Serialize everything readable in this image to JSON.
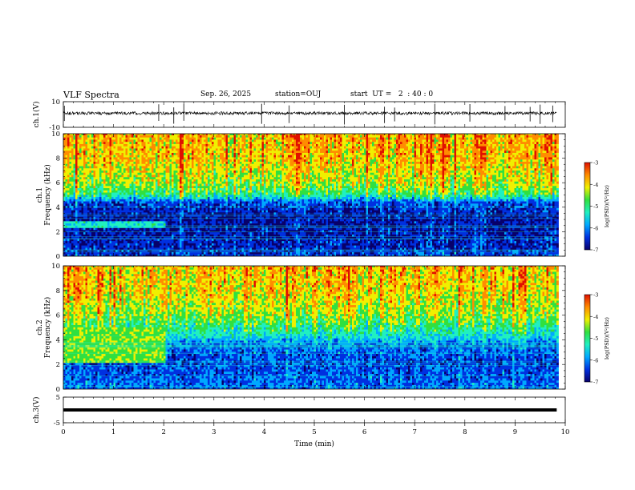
{
  "header": {
    "title": "VLF Spectra",
    "date": "Sep. 26, 2025",
    "station": "station=OUJ",
    "start_ut": "start  UT =   2  : 40 : 0"
  },
  "chart_data": [
    {
      "type": "line",
      "panel": "ch1-waveform",
      "ylabel": "ch.1(V)",
      "ylim": [
        -10,
        10
      ],
      "y_ticks": [
        {
          "value": 10,
          "label": "10"
        },
        {
          "value": -10,
          "label": "-10"
        }
      ],
      "xlim": [
        0,
        10
      ],
      "data_extent_min": 9.83,
      "baseline_v": 1.0,
      "noise_amplitude_v": 1.2,
      "spikes_at_min": [
        0.02,
        1.9,
        2.2,
        2.4,
        3.95,
        4.5,
        5.6,
        6.4,
        6.6,
        7.4,
        8.1,
        8.8,
        9.3,
        9.5,
        9.75
      ]
    },
    {
      "type": "heatmap",
      "panel": "ch1-spectrogram",
      "ylabel": "ch.1 Frequency (kHz)",
      "ylim": [
        0,
        10
      ],
      "y_ticks": [
        0,
        2,
        4,
        6,
        8,
        10
      ],
      "xlim": [
        0,
        10
      ],
      "data_extent_min": 9.83,
      "colorbar": {
        "label": "log(PSD)(V²/Hz)",
        "range": [
          -7,
          -3
        ],
        "ticks": [
          -3,
          -4,
          -5,
          -6,
          -7
        ]
      },
      "profile_log_psd": [
        {
          "freq_khz": 0.0,
          "value": -6.3
        },
        {
          "freq_khz": 1.5,
          "value": -6.5
        },
        {
          "freq_khz": 3.0,
          "value": -6.6
        },
        {
          "freq_khz": 4.3,
          "value": -6.2
        },
        {
          "freq_khz": 5.0,
          "value": -5.0
        },
        {
          "freq_khz": 6.0,
          "value": -4.5
        },
        {
          "freq_khz": 8.0,
          "value": -4.1
        },
        {
          "freq_khz": 10.0,
          "value": -4.0
        }
      ],
      "band_feature": {
        "t_start_min": 0.0,
        "t_end_min": 2.0,
        "freq_low_khz": 2.2,
        "freq_high_khz": 2.8,
        "value": -5.3
      }
    },
    {
      "type": "heatmap",
      "panel": "ch2-spectrogram",
      "ylabel": "ch.2 Frequency (kHz)",
      "ylim": [
        0,
        10
      ],
      "y_ticks": [
        0,
        2,
        4,
        6,
        8,
        10
      ],
      "xlim": [
        0,
        10
      ],
      "data_extent_min": 9.83,
      "colorbar": {
        "label": "log(PSD)(V²/Hz)",
        "range": [
          -7,
          -3
        ],
        "ticks": [
          -3,
          -4,
          -5,
          -6,
          -7
        ]
      },
      "profile_log_psd": [
        {
          "freq_khz": 0.0,
          "value": -6.0
        },
        {
          "freq_khz": 2.0,
          "value": -6.2
        },
        {
          "freq_khz": 3.5,
          "value": -6.0
        },
        {
          "freq_khz": 4.5,
          "value": -5.2
        },
        {
          "freq_khz": 6.0,
          "value": -4.5
        },
        {
          "freq_khz": 8.0,
          "value": -4.1
        },
        {
          "freq_khz": 10.0,
          "value": -4.0
        }
      ],
      "band_feature": {
        "t_start_min": 0.0,
        "t_end_min": 2.0,
        "freq_low_khz": 2.0,
        "freq_high_khz": 5.0,
        "value": -4.6
      }
    },
    {
      "type": "line",
      "panel": "ch3-waveform",
      "ylabel": "ch.3(V)",
      "ylim": [
        -5,
        5
      ],
      "y_ticks": [
        {
          "value": 5,
          "label": "5"
        },
        {
          "value": -5,
          "label": "-5"
        }
      ],
      "xlim": [
        0,
        10
      ],
      "data_extent_min": 9.83,
      "constant_level_v": 0.0
    }
  ],
  "x_axis": {
    "label": "Time (min)",
    "ticks": [
      0,
      1,
      2,
      3,
      4,
      5,
      6,
      7,
      8,
      9,
      10
    ]
  },
  "colormap": [
    "#08006a",
    "#0030e0",
    "#00a8ff",
    "#20f0c0",
    "#30e040",
    "#f0f000",
    "#ff8c00",
    "#e01000"
  ]
}
